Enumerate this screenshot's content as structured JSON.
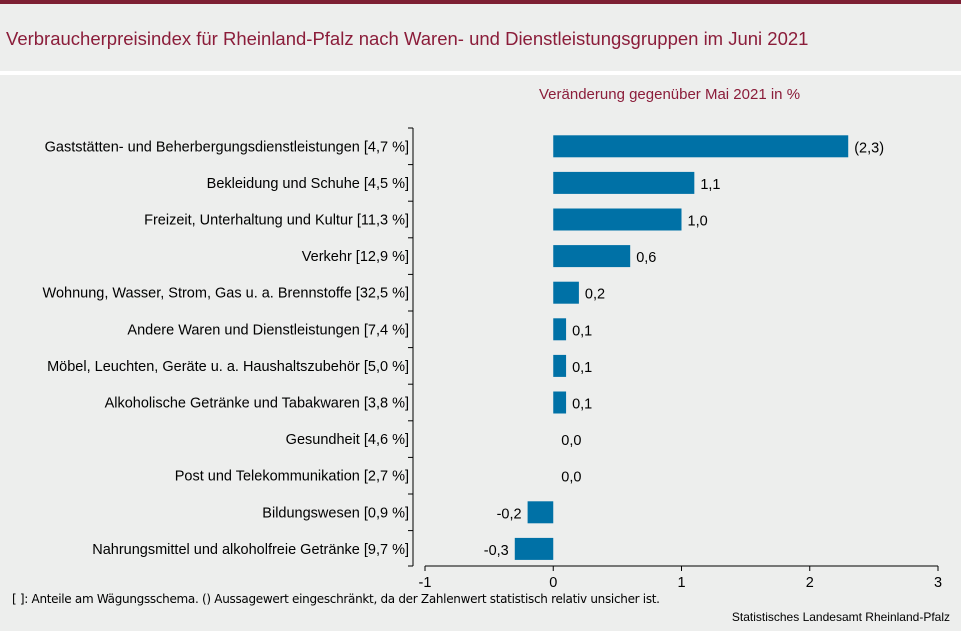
{
  "header": {
    "title": "Verbraucherpreisindex für Rheinland-Pfalz nach Waren- und Dienstleistungsgruppen im Juni 2021"
  },
  "chart_data": {
    "type": "bar",
    "orientation": "horizontal",
    "subtitle": "Veränderung gegenüber Mai 2021 in %",
    "categories": [
      "Gaststätten- und Beherbergungsdienstleistungen [4,7 %]",
      "Bekleidung und Schuhe [4,5 %]",
      "Freizeit, Unterhaltung und Kultur [11,3 %]",
      "Verkehr [12,9 %]",
      "Wohnung, Wasser, Strom, Gas u. a. Brennstoffe [32,5 %]",
      "Andere Waren und Dienstleistungen [7,4 %]",
      "Möbel, Leuchten, Geräte u. a. Haushaltszubehör [5,0 %]",
      "Alkoholische Getränke und Tabakwaren [3,8 %]",
      "Gesundheit [4,6 %]",
      "Post und Telekommunikation [2,7 %]",
      "Bildungswesen [0,9 %]",
      "Nahrungsmittel und alkoholfreie Getränke [9,7 %]"
    ],
    "values": [
      2.3,
      1.1,
      1.0,
      0.6,
      0.2,
      0.1,
      0.1,
      0.1,
      0.0,
      0.0,
      -0.2,
      -0.3
    ],
    "value_labels": [
      "(2,3)",
      "1,1",
      "1,0",
      "0,6",
      "0,2",
      "0,1",
      "0,1",
      "0,1",
      "0,0",
      "0,0",
      "-0,2",
      "-0,3"
    ],
    "xlim": [
      -1,
      3
    ],
    "xticks": [
      -1,
      0,
      1,
      2,
      3
    ],
    "xtick_labels": [
      "-1",
      "0",
      "1",
      "2",
      "3"
    ],
    "grid": false,
    "colors": {
      "bar": "#0071a6",
      "accent": "#8b1d3a"
    }
  },
  "footer": {
    "footnote": "[ ]: Anteile am Wägungsschema. () Aussagewert eingeschränkt, da der Zahlenwert statistisch relativ unsicher ist.",
    "source": "Statistisches Landesamt Rheinland-Pfalz"
  }
}
